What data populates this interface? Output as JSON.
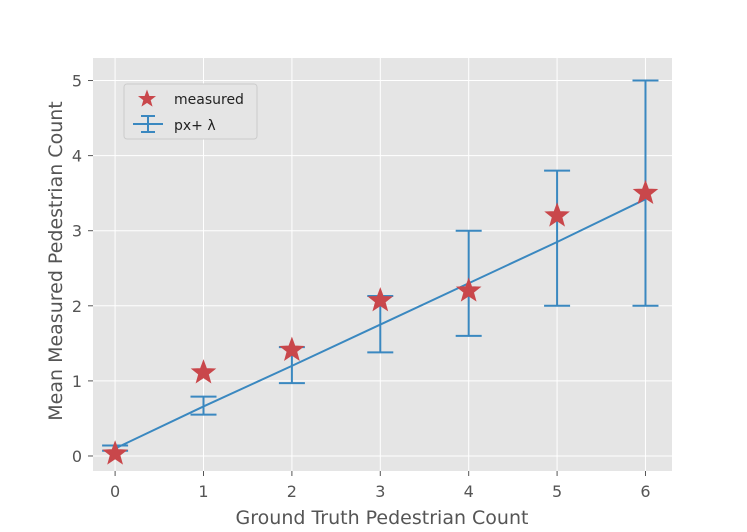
{
  "chart_data": {
    "type": "scatter",
    "title": "",
    "xlabel": "Ground Truth Pedestrian Count",
    "ylabel": "Mean Measured Pedestrian Count",
    "xlim": [
      -0.25,
      6.3
    ],
    "ylim": [
      -0.2,
      5.3
    ],
    "x_ticks": [
      "0",
      "1",
      "2",
      "3",
      "4",
      "5",
      "6"
    ],
    "y_ticks": [
      "0",
      "1",
      "2",
      "3",
      "4",
      "5"
    ],
    "grid": true,
    "legend_position": "upper-left",
    "colors": {
      "background": "#e5e5e5",
      "grid": "#ffffff",
      "measured": "#c9474b",
      "fit": "#3a88c0"
    },
    "measured": {
      "name": "measured",
      "marker": "star",
      "x": [
        0,
        1,
        2,
        3,
        4,
        5,
        6
      ],
      "y": [
        0.03,
        1.11,
        1.41,
        2.07,
        2.2,
        3.2,
        3.5
      ]
    },
    "fit": {
      "name": "px+ λ",
      "x": [
        0,
        1,
        2,
        3,
        4,
        5,
        6
      ],
      "y": [
        0.1,
        0.66,
        1.2,
        1.75,
        2.3,
        2.85,
        3.42
      ],
      "err_low": [
        0.07,
        0.55,
        0.97,
        1.38,
        1.6,
        2.0,
        2.0
      ],
      "err_high": [
        0.14,
        0.79,
        1.45,
        2.13,
        3.0,
        3.8,
        5.0
      ]
    }
  }
}
